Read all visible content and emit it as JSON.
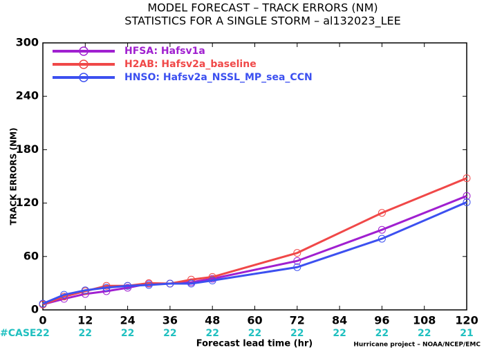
{
  "chart_data": {
    "type": "line",
    "title": "MODEL FORECAST – TRACK ERRORS (NM)",
    "subtitle": "STATISTICS FOR A SINGLE STORM – al132023_LEE",
    "y_label": "TRACK ERRORS (NM)",
    "x_label": "Forecast lead time (hr)",
    "x": [
      0,
      6,
      12,
      18,
      24,
      30,
      36,
      42,
      48,
      72,
      96,
      120
    ],
    "series": [
      {
        "name": "HFSA: Hafsv1a",
        "color": "#a020d0",
        "values": [
          6.2,
          12.4,
          17.9,
          21,
          24.9,
          29.5,
          29.5,
          31,
          35,
          55,
          90,
          128
        ]
      },
      {
        "name": "H2AB: Hafsv2a_baseline",
        "color": "#f04848",
        "values": [
          6,
          15,
          21,
          27,
          27,
          30,
          29.5,
          34,
          37,
          64,
          109,
          148
        ]
      },
      {
        "name": "HNSO: Hafsv2a_NSSL_MP_sea_CCN",
        "color": "#3c50f0",
        "values": [
          7,
          17,
          22,
          25,
          27,
          28,
          29.5,
          29.5,
          33,
          48,
          80,
          121
        ]
      }
    ],
    "xlim": [
      0,
      120
    ],
    "xticks": [
      0,
      12,
      24,
      36,
      48,
      60,
      72,
      84,
      96,
      108,
      120
    ],
    "ylim": [
      0,
      300
    ],
    "yticks": [
      0,
      60,
      120,
      180,
      240,
      300
    ],
    "legend": "upper left",
    "case_label": "#CASE",
    "cases": [
      "22",
      "22",
      "22",
      "22",
      "22",
      "22",
      "22",
      "22",
      "22",
      "22",
      "21"
    ],
    "footer": "Hurricane project – NOAA/NCEP/EMC"
  }
}
